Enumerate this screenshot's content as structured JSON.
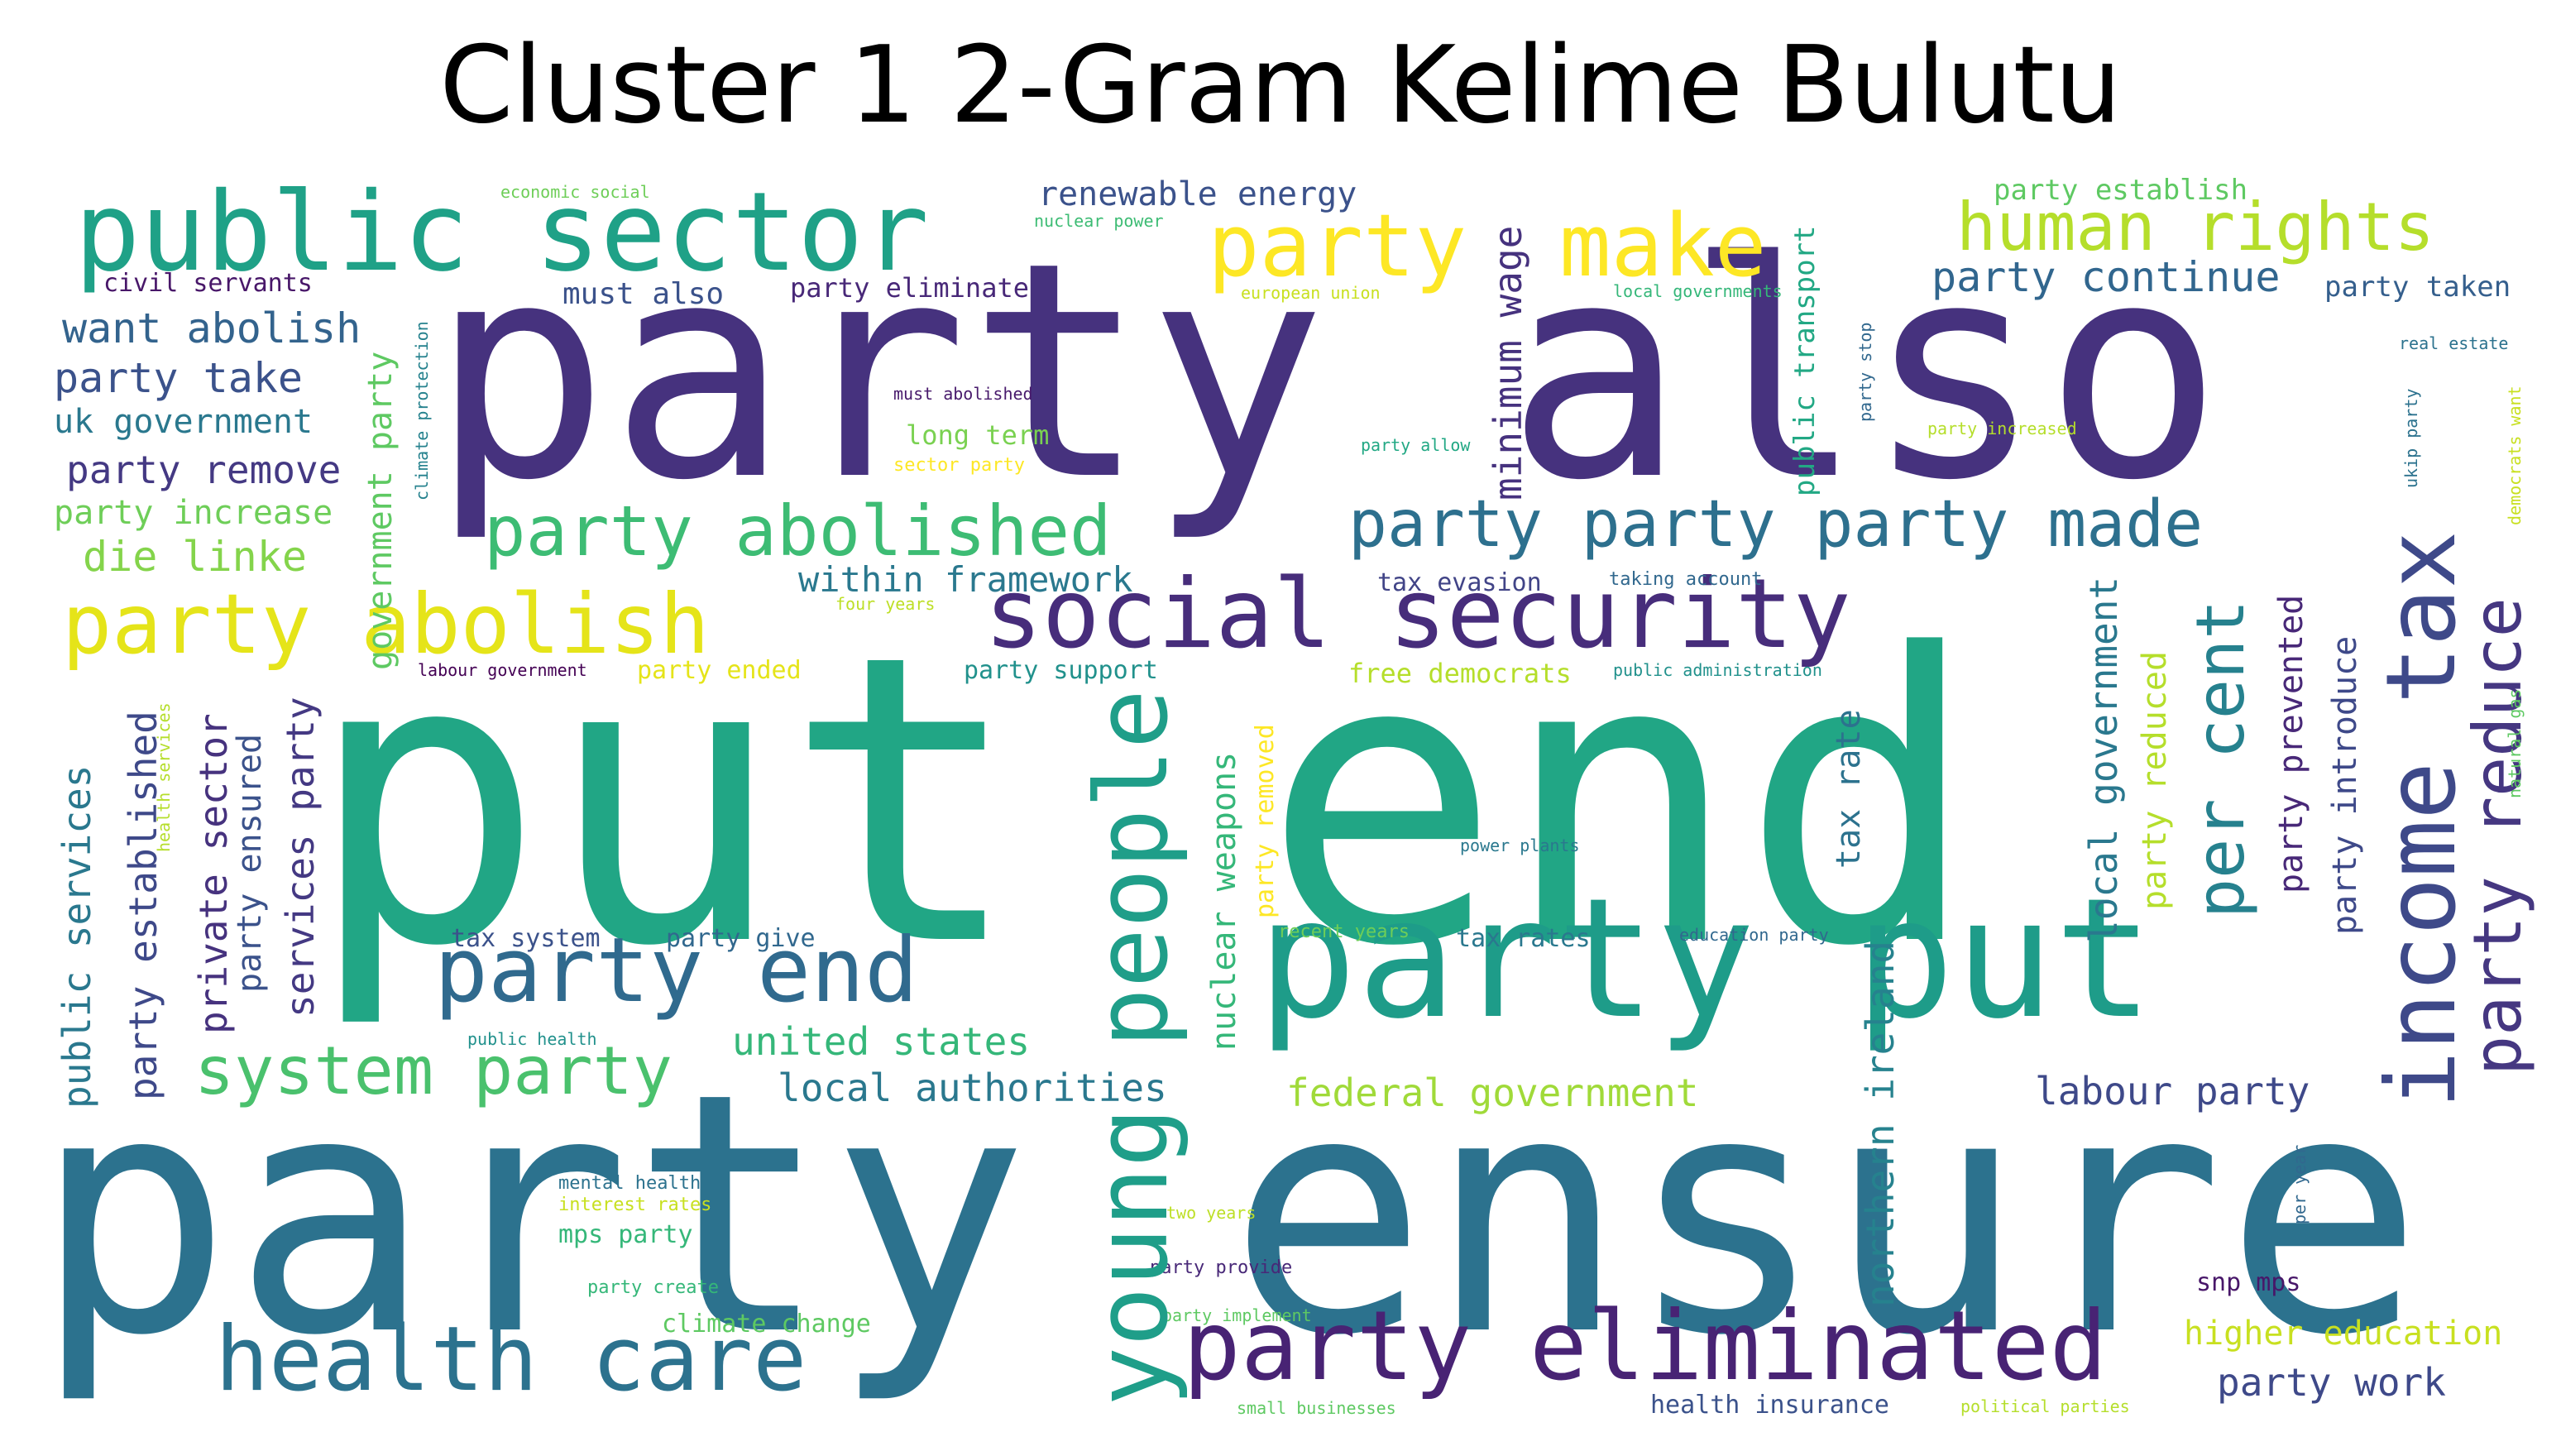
{
  "title": "Cluster 1 2-Gram Kelime Bulutu",
  "words": [
    {
      "text": "party also",
      "color": "#46327e"
    },
    {
      "text": "put end",
      "color": "#21a685"
    },
    {
      "text": "party ensure",
      "color": "#2c728e"
    },
    {
      "text": "public sector",
      "color": "#1fa187"
    },
    {
      "text": "party put",
      "color": "#1e9c89"
    },
    {
      "text": "party eliminated",
      "color": "#482374"
    },
    {
      "text": "health care",
      "color": "#2c728e"
    },
    {
      "text": "social security",
      "color": "#472d7b"
    },
    {
      "text": "party abolish",
      "color": "#e5e419"
    },
    {
      "text": "party end",
      "color": "#306a8e"
    },
    {
      "text": "young people",
      "color": "#1f9e89"
    },
    {
      "text": "income tax",
      "color": "#3e4989"
    },
    {
      "text": "party reduce",
      "color": "#453781"
    },
    {
      "text": "party",
      "color": "#fde725"
    },
    {
      "text": "make",
      "color": "#fde725"
    },
    {
      "text": "human rights",
      "color": "#b5de2b"
    },
    {
      "text": "party abolished",
      "color": "#3dbc74"
    },
    {
      "text": "party party party made",
      "color": "#2d708e"
    },
    {
      "text": "system party",
      "color": "#4ac16d"
    },
    {
      "text": "per cent",
      "color": "#26818e"
    },
    {
      "text": "renewable energy",
      "color": "#3b528b"
    },
    {
      "text": "party establish",
      "color": "#5ec962"
    },
    {
      "text": "party continue",
      "color": "#31668e"
    },
    {
      "text": "party taken",
      "color": "#355f8d"
    },
    {
      "text": "want abolish",
      "color": "#33638d"
    },
    {
      "text": "party take",
      "color": "#3b528b"
    },
    {
      "text": "uk government",
      "color": "#2a788e"
    },
    {
      "text": "party remove",
      "color": "#443983"
    },
    {
      "text": "party increase",
      "color": "#6ece58"
    },
    {
      "text": "die linke",
      "color": "#84d44b"
    },
    {
      "text": "civil servants",
      "color": "#481769"
    },
    {
      "text": "economic social",
      "color": "#6ece58"
    },
    {
      "text": "must also",
      "color": "#3b528b"
    },
    {
      "text": "party eliminate",
      "color": "#482878"
    },
    {
      "text": "nuclear power",
      "color": "#3dbc74"
    },
    {
      "text": "european union",
      "color": "#c8e020"
    },
    {
      "text": "local governments",
      "color": "#35b779"
    },
    {
      "text": "real estate",
      "color": "#2c728e"
    },
    {
      "text": "must abolished",
      "color": "#481a6c"
    },
    {
      "text": "long term",
      "color": "#7ad151"
    },
    {
      "text": "sector party",
      "color": "#fde725"
    },
    {
      "text": "party allow",
      "color": "#22a884"
    },
    {
      "text": "party increased",
      "color": "#b5de2b"
    },
    {
      "text": "within framework",
      "color": "#2a788e"
    },
    {
      "text": "tax evasion",
      "color": "#414487"
    },
    {
      "text": "taking account",
      "color": "#31688e"
    },
    {
      "text": "four years",
      "color": "#bddf26"
    },
    {
      "text": "labour government",
      "color": "#440154"
    },
    {
      "text": "party ended",
      "color": "#e5e419"
    },
    {
      "text": "party support",
      "color": "#21918c"
    },
    {
      "text": "free democrats",
      "color": "#b5de2b"
    },
    {
      "text": "public administration",
      "color": "#21918c"
    },
    {
      "text": "power plants",
      "color": "#2a788e"
    },
    {
      "text": "tax system",
      "color": "#3b528b"
    },
    {
      "text": "party give",
      "color": "#31688e"
    },
    {
      "text": "recent years",
      "color": "#6ece58"
    },
    {
      "text": "tax rates",
      "color": "#2a788e"
    },
    {
      "text": "education party",
      "color": "#31688e"
    },
    {
      "text": "united states",
      "color": "#35b779"
    },
    {
      "text": "local authorities",
      "color": "#2a788e"
    },
    {
      "text": "federal government",
      "color": "#a0da39"
    },
    {
      "text": "labour party",
      "color": "#3e4989"
    },
    {
      "text": "public health",
      "color": "#21918c"
    },
    {
      "text": "mental health",
      "color": "#2c728e"
    },
    {
      "text": "interest rates",
      "color": "#c8e020"
    },
    {
      "text": "mps party",
      "color": "#35b779"
    },
    {
      "text": "two years",
      "color": "#bddf26"
    },
    {
      "text": "party provide",
      "color": "#482878"
    },
    {
      "text": "party create",
      "color": "#35b779"
    },
    {
      "text": "climate change",
      "color": "#5ec962"
    },
    {
      "text": "party implement",
      "color": "#5ec962"
    },
    {
      "text": "snp mps",
      "color": "#481769"
    },
    {
      "text": "higher education",
      "color": "#c8e020"
    },
    {
      "text": "party work",
      "color": "#3e4989"
    },
    {
      "text": "small businesses",
      "color": "#5ec962"
    },
    {
      "text": "health insurance",
      "color": "#3b528b"
    },
    {
      "text": "political parties",
      "color": "#b5de2b"
    },
    {
      "text": "public services",
      "color": "#2a788e"
    },
    {
      "text": "party established",
      "color": "#3e4989"
    },
    {
      "text": "health services",
      "color": "#b5de2b"
    },
    {
      "text": "private sector",
      "color": "#46327e"
    },
    {
      "text": "party ensured",
      "color": "#3b528b"
    },
    {
      "text": "services party",
      "color": "#443983"
    },
    {
      "text": "government party",
      "color": "#5ec962"
    },
    {
      "text": "climate protection",
      "color": "#26828e"
    },
    {
      "text": "minimum wage",
      "color": "#46327e"
    },
    {
      "text": "public transport",
      "color": "#22a884"
    },
    {
      "text": "party stop",
      "color": "#31688e"
    },
    {
      "text": "nuclear weapons",
      "color": "#35b779"
    },
    {
      "text": "party removed",
      "color": "#fde725"
    },
    {
      "text": "tax rate",
      "color": "#2c728e"
    },
    {
      "text": "northern ireland",
      "color": "#26828e"
    },
    {
      "text": "local government",
      "color": "#2a788e"
    },
    {
      "text": "party reduced",
      "color": "#b5de2b"
    },
    {
      "text": "party prevented",
      "color": "#482878"
    },
    {
      "text": "party introduce",
      "color": "#3e4989"
    },
    {
      "text": "ukip party",
      "color": "#2c728e"
    },
    {
      "text": "democrats want",
      "color": "#c8e020"
    },
    {
      "text": "natural gas",
      "color": "#5ec962"
    },
    {
      "text": "per year",
      "color": "#31688e"
    }
  ]
}
